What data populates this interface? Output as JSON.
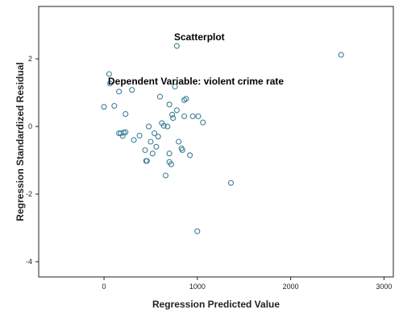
{
  "chart_data": {
    "type": "scatter",
    "title": "Scatterplot",
    "subtitle": "Dependent Variable: violent crime rate",
    "xlabel": "Regression Predicted Value",
    "ylabel": "Regression Standardized Residual",
    "xlim": [
      -700,
      3100
    ],
    "ylim": [
      -4.45,
      3.55
    ],
    "x_ticks": [
      0,
      1000,
      2000,
      3000
    ],
    "y_ticks": [
      -4,
      -2,
      0,
      2
    ],
    "x_tick_labels": [
      "0",
      "1000",
      "2000",
      "3000"
    ],
    "y_tick_labels": [
      "-4",
      "-2",
      "0",
      "2"
    ],
    "grid": false,
    "point_color": "#3d7f96",
    "x": [
      2540,
      780,
      55,
      65,
      160,
      230,
      300,
      0,
      110,
      160,
      180,
      200,
      210,
      230,
      320,
      380,
      440,
      450,
      460,
      480,
      500,
      520,
      540,
      560,
      580,
      600,
      620,
      640,
      660,
      680,
      700,
      700,
      720,
      730,
      740,
      760,
      780,
      800,
      830,
      840,
      860,
      880,
      920,
      950,
      1010,
      1060,
      1360,
      1000,
      700,
      860
    ],
    "y": [
      2.12,
      2.38,
      1.55,
      1.27,
      1.03,
      0.37,
      1.08,
      0.58,
      0.61,
      -0.2,
      -0.2,
      -0.28,
      -0.18,
      -0.17,
      -0.4,
      -0.27,
      -0.7,
      -1.02,
      -1.02,
      0.0,
      -0.45,
      -0.8,
      -0.2,
      -0.6,
      -0.3,
      0.88,
      0.1,
      0.02,
      -1.45,
      0.0,
      0.65,
      -1.05,
      -1.12,
      0.35,
      0.25,
      1.18,
      0.48,
      -0.45,
      -0.65,
      -0.7,
      0.78,
      0.82,
      -0.85,
      0.3,
      0.3,
      0.12,
      -1.67,
      -3.1,
      -0.8,
      0.3
    ]
  }
}
